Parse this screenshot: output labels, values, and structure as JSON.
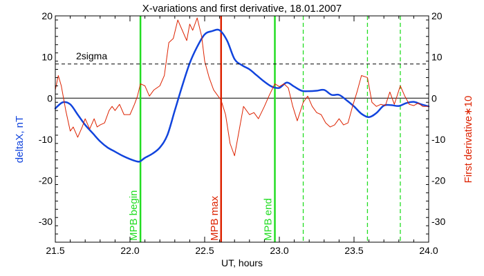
{
  "chart_data": {
    "type": "line",
    "title": "X-variations and first derivative, 18.01.2007",
    "xlabel": "UT, hours",
    "ylabel_left": "deltaX, nT",
    "ylabel_right": "First derivative∗10",
    "xlim": [
      21.5,
      24.0
    ],
    "ylim_left": [
      -35,
      20
    ],
    "ylim_right": [
      -35,
      20
    ],
    "x_ticks": [
      "21.5",
      "22.0",
      "22.5",
      "23.0",
      "23.5",
      "24.0"
    ],
    "x_tick_values": [
      21.5,
      22.0,
      22.5,
      23.0,
      23.5,
      24.0
    ],
    "y_ticks": [
      "20",
      "10",
      "0",
      "-10",
      "-20",
      "-30"
    ],
    "y_tick_values": [
      20,
      10,
      0,
      -10,
      -20,
      -30
    ],
    "threshold": {
      "label": "2sigma",
      "value": 8.3
    },
    "markers": [
      {
        "label": "MPB begin",
        "x": 22.07,
        "style": "solid",
        "color": "#22dd22",
        "labeled": true
      },
      {
        "label": "MPB max",
        "x": 22.61,
        "style": "solid",
        "color": "#dd2200",
        "labeled": true
      },
      {
        "label": "MPB end",
        "x": 22.97,
        "style": "solid",
        "color": "#22dd22",
        "labeled": true
      },
      {
        "label": "",
        "x": 23.16,
        "style": "dashed",
        "color": "#22dd22",
        "labeled": false
      },
      {
        "label": "",
        "x": 23.59,
        "style": "dashed",
        "color": "#22dd22",
        "labeled": false
      },
      {
        "label": "",
        "x": 23.81,
        "style": "dashed",
        "color": "#22dd22",
        "labeled": false
      }
    ],
    "series": [
      {
        "axis": "left",
        "color": "#1144dd",
        "width": 2.5,
        "x": [
          21.5,
          21.55,
          21.6,
          21.65,
          21.7,
          21.75,
          21.8,
          21.85,
          21.9,
          21.95,
          22.0,
          22.05,
          22.07,
          22.1,
          22.15,
          22.2,
          22.25,
          22.3,
          22.35,
          22.4,
          22.45,
          22.5,
          22.55,
          22.6,
          22.65,
          22.7,
          22.75,
          22.8,
          22.85,
          22.9,
          22.95,
          23.0,
          23.05,
          23.1,
          23.15,
          23.2,
          23.25,
          23.3,
          23.35,
          23.4,
          23.45,
          23.5,
          23.55,
          23.6,
          23.65,
          23.7,
          23.75,
          23.8,
          23.85,
          23.9,
          23.95,
          24.0
        ],
        "y": [
          -2.5,
          -1.0,
          -1.5,
          -4.0,
          -6.5,
          -8.5,
          -10.5,
          -12.0,
          -13.0,
          -14.0,
          -14.8,
          -15.4,
          -15.3,
          -14.5,
          -13.5,
          -12.0,
          -9.0,
          -3.0,
          3.0,
          8.5,
          12.5,
          15.5,
          16.3,
          16.5,
          14.0,
          9.5,
          8.0,
          7.0,
          5.5,
          4.0,
          2.8,
          2.5,
          3.8,
          2.8,
          1.8,
          1.7,
          1.8,
          2.0,
          0.8,
          0.8,
          -0.5,
          -2.0,
          -3.8,
          -4.6,
          -3.6,
          -1.8,
          -1.7,
          -1.9,
          -1.2,
          -0.9,
          -1.5,
          -2.0
        ]
      },
      {
        "axis": "right",
        "color": "#dd2200",
        "width": 1,
        "x": [
          21.5,
          21.52,
          21.54,
          21.57,
          21.6,
          21.62,
          21.65,
          21.68,
          21.7,
          21.73,
          21.76,
          21.78,
          21.8,
          21.83,
          21.86,
          21.88,
          21.9,
          21.93,
          21.96,
          22.0,
          22.03,
          22.05,
          22.07,
          22.1,
          22.13,
          22.16,
          22.2,
          22.23,
          22.26,
          22.29,
          22.32,
          22.35,
          22.38,
          22.4,
          22.42,
          22.45,
          22.48,
          22.5,
          22.53,
          22.56,
          22.59,
          22.61,
          22.64,
          22.67,
          22.7,
          22.73,
          22.76,
          22.8,
          22.83,
          22.86,
          22.9,
          22.93,
          22.97,
          23.0,
          23.03,
          23.06,
          23.09,
          23.12,
          23.16,
          23.19,
          23.22,
          23.25,
          23.28,
          23.31,
          23.34,
          23.37,
          23.4,
          23.43,
          23.46,
          23.49,
          23.52,
          23.55,
          23.59,
          23.62,
          23.65,
          23.68,
          23.71,
          23.74,
          23.77,
          23.81,
          23.84,
          23.87,
          23.9,
          23.93,
          23.96,
          24.0
        ],
        "y": [
          2.0,
          5.5,
          3.0,
          -3.0,
          -8.0,
          -7.0,
          -9.5,
          -7.0,
          -5.0,
          -7.5,
          -5.0,
          -7.0,
          -6.5,
          -6.0,
          -3.0,
          -2.0,
          -3.0,
          -1.5,
          -4.0,
          -4.0,
          -1.5,
          0.5,
          3.5,
          3.0,
          0.5,
          2.0,
          3.0,
          5.5,
          13.5,
          14.5,
          19.0,
          16.5,
          14.0,
          18.0,
          16.5,
          19.5,
          15.0,
          9.0,
          5.0,
          2.0,
          0.5,
          -0.5,
          -4.0,
          -11.0,
          -14.0,
          -8.0,
          -2.0,
          -4.0,
          -3.5,
          -5.0,
          -2.0,
          0.5,
          3.5,
          2.8,
          3.5,
          2.5,
          -2.0,
          -5.5,
          -1.0,
          0.5,
          -2.0,
          -3.5,
          -4.0,
          -6.0,
          -7.0,
          -6.5,
          -5.0,
          -6.5,
          -6.0,
          -2.0,
          1.5,
          5.5,
          5.0,
          -1.0,
          -2.0,
          -1.5,
          -1.8,
          1.5,
          -1.5,
          3.0,
          0.5,
          -1.5,
          -1.8,
          -1.2,
          -2.0,
          -2.0
        ]
      }
    ]
  }
}
